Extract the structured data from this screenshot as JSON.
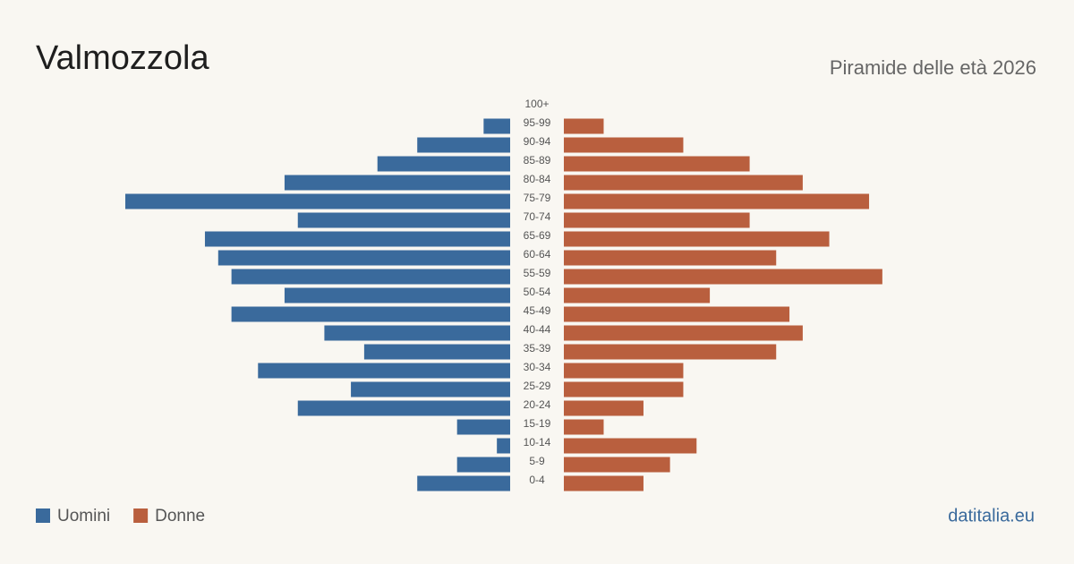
{
  "chart_data": {
    "type": "pyramid",
    "title": "Valmozzola",
    "subtitle": "Piramide delle età 2026",
    "source": "datitalia.eu",
    "categories": [
      "100+",
      "95-99",
      "90-94",
      "85-89",
      "80-84",
      "75-79",
      "70-74",
      "65-69",
      "60-64",
      "55-59",
      "50-54",
      "45-49",
      "40-44",
      "35-39",
      "30-34",
      "25-29",
      "20-24",
      "15-19",
      "10-14",
      "5-9",
      "0-4"
    ],
    "series": [
      {
        "name": "Uomini",
        "color": "#3a6a9c",
        "values": [
          0,
          2,
          7,
          10,
          17,
          29,
          16,
          23,
          22,
          21,
          17,
          21,
          14,
          11,
          19,
          12,
          16,
          4,
          1,
          4,
          7
        ]
      },
      {
        "name": "Donne",
        "color": "#b95f3e",
        "values": [
          0,
          3,
          9,
          14,
          18,
          23,
          14,
          20,
          16,
          24,
          11,
          17,
          18,
          16,
          9,
          9,
          6,
          3,
          10,
          8,
          6
        ]
      }
    ]
  }
}
